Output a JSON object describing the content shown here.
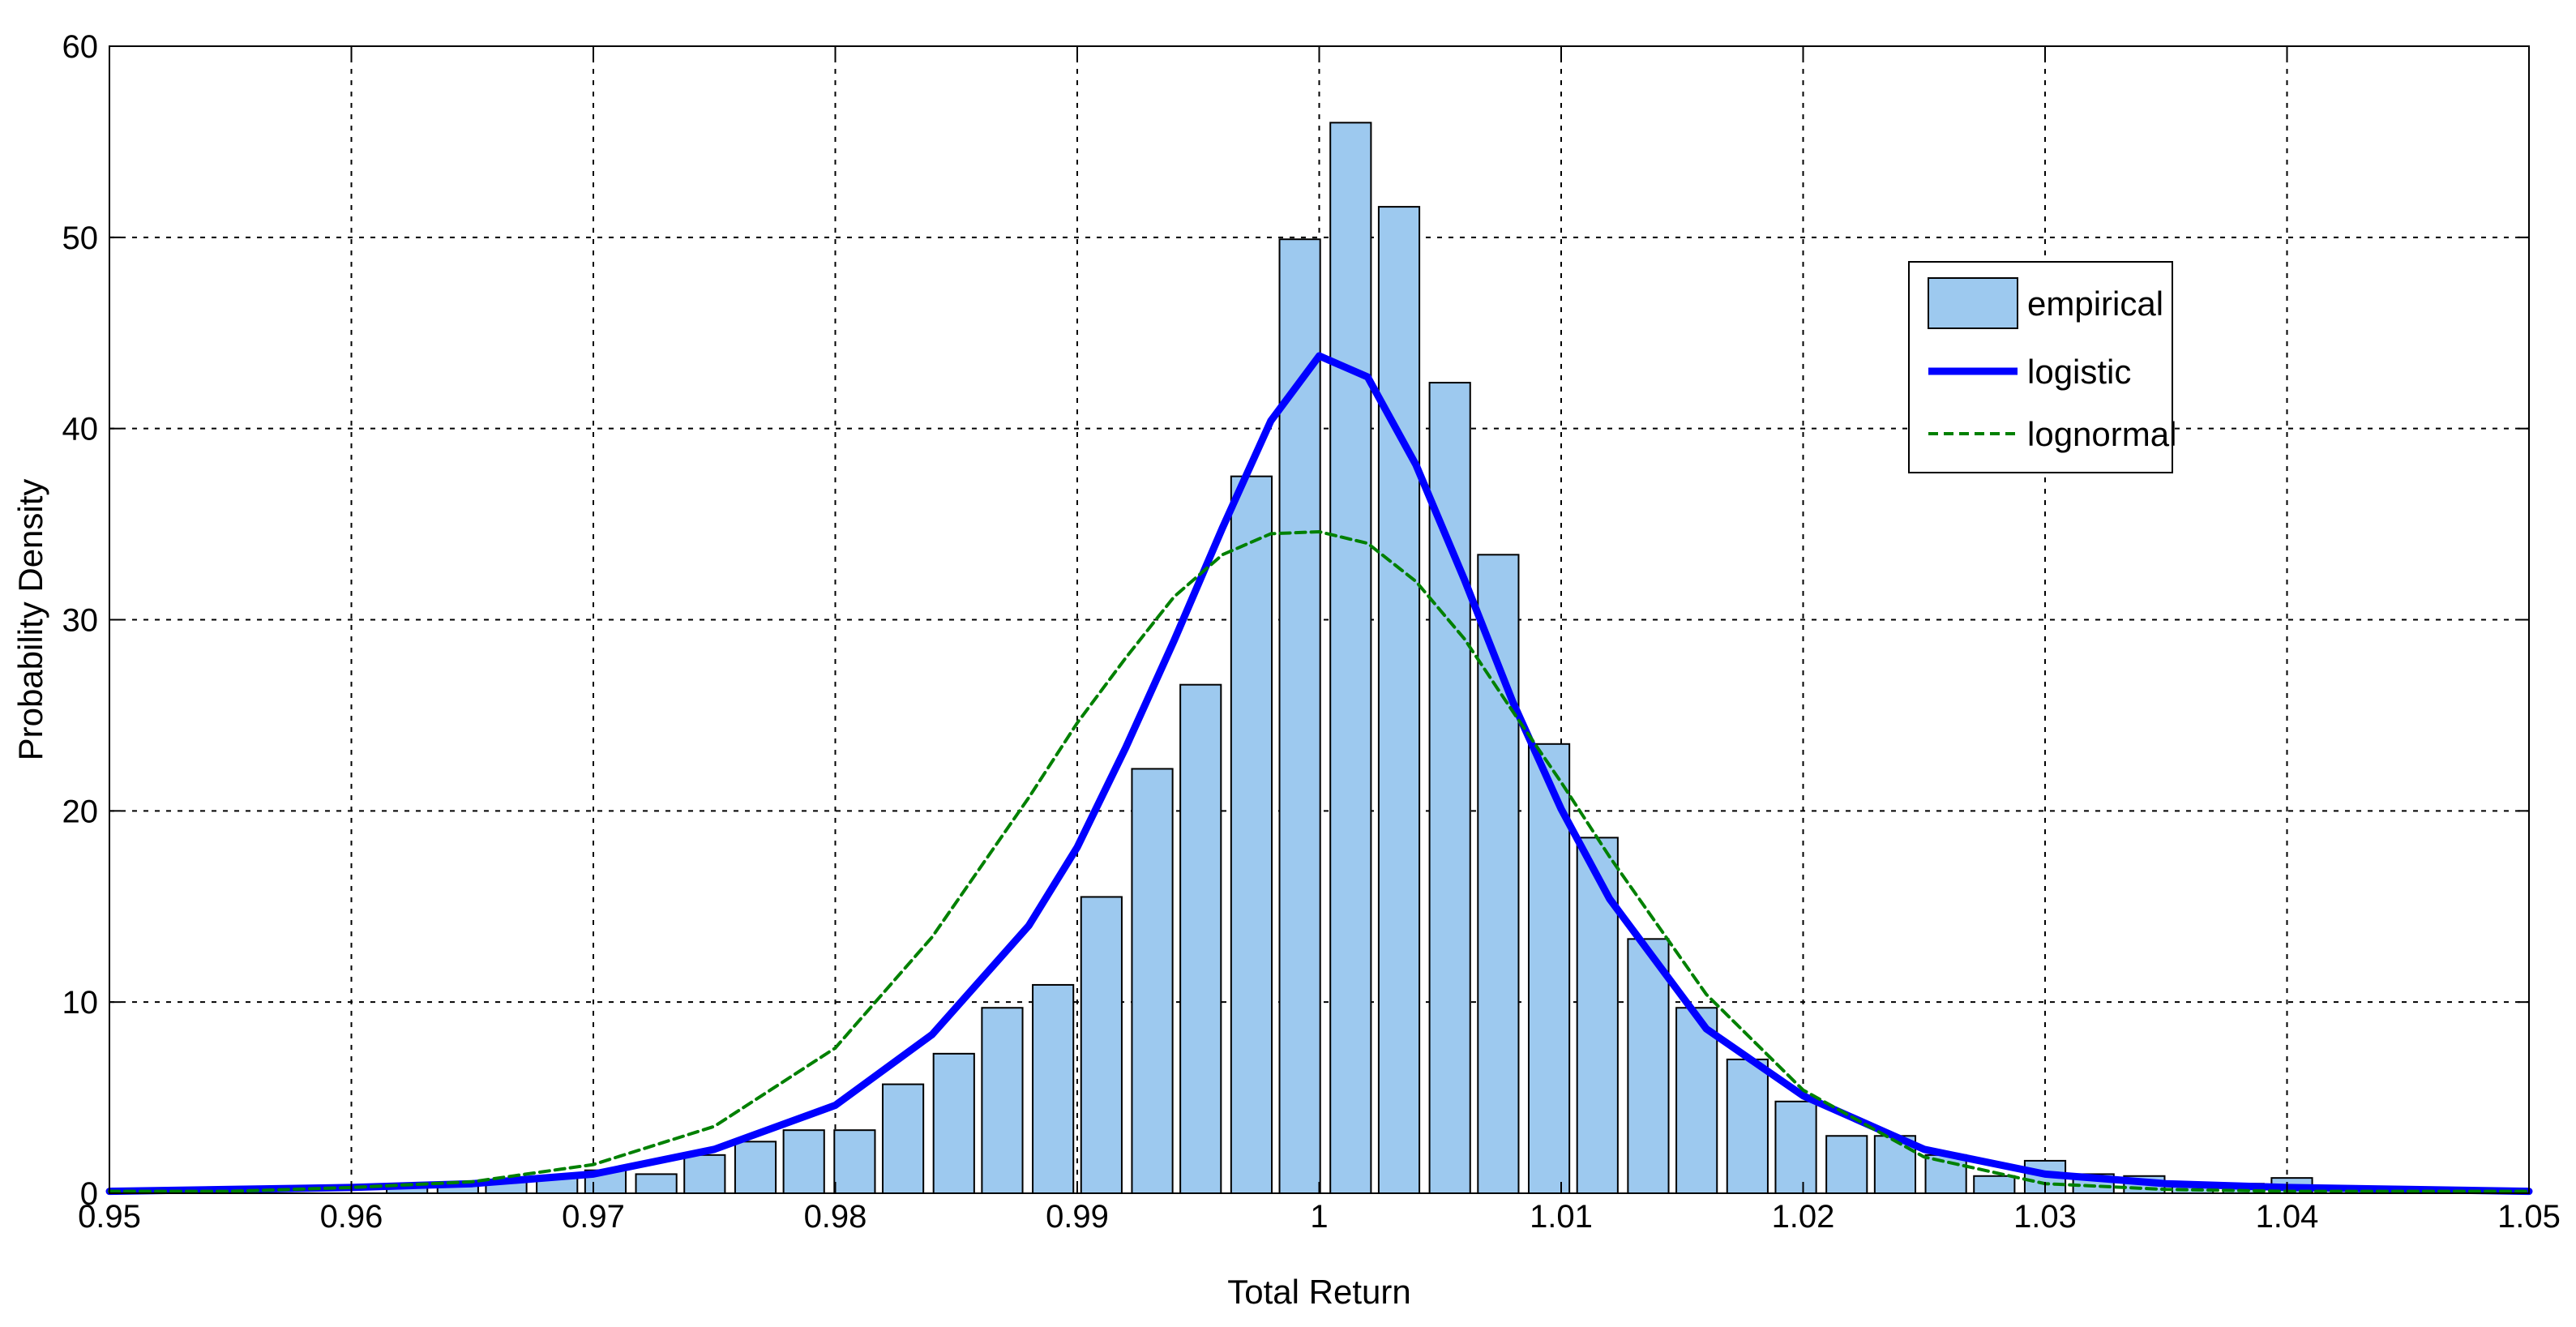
{
  "chart_data": {
    "type": "bar",
    "xlabel": "Total Return",
    "ylabel": "Probability Density",
    "xlim": [
      0.95,
      1.05
    ],
    "ylim": [
      0,
      60
    ],
    "xticks": [
      0.95,
      0.96,
      0.97,
      0.98,
      0.99,
      1.0,
      1.01,
      1.02,
      1.03,
      1.04,
      1.05
    ],
    "xtick_labels": [
      "0.95",
      "0.96",
      "0.97",
      "0.98",
      "0.99",
      "1",
      "1.01",
      "1.02",
      "1.03",
      "1.04",
      "1.05"
    ],
    "yticks": [
      0,
      10,
      20,
      30,
      40,
      50,
      60
    ],
    "ytick_labels": [
      "0",
      "10",
      "20",
      "30",
      "40",
      "50",
      "60"
    ],
    "grid": true,
    "legend_position": "top-right",
    "colors": {
      "bar_fill": "#9dc9ef",
      "bar_edge": "#000000",
      "logistic": "#0000ff",
      "lognormal": "#008000"
    },
    "histogram": {
      "name": "empirical",
      "bin_width": 0.00205,
      "bin_centers": [
        0.9623,
        0.9644,
        0.9664,
        0.9685,
        0.9705,
        0.9726,
        0.9746,
        0.9767,
        0.9787,
        0.9808,
        0.9828,
        0.9849,
        0.9869,
        0.989,
        0.991,
        0.9931,
        0.9951,
        0.9972,
        0.9992,
        1.0013,
        1.0033,
        1.0054,
        1.0074,
        1.0095,
        1.0115,
        1.0136,
        1.0156,
        1.0177,
        1.0197,
        1.0218,
        1.0238,
        1.0259,
        1.0279,
        1.03,
        1.032,
        1.0341,
        1.0361,
        1.0382,
        1.0402
      ],
      "values": [
        0.5,
        0.5,
        0.7,
        0.9,
        1.2,
        1.0,
        2.0,
        2.7,
        3.3,
        3.3,
        5.7,
        7.3,
        9.7,
        10.9,
        15.5,
        22.2,
        26.6,
        37.5,
        49.9,
        56.0,
        51.6,
        42.4,
        33.4,
        23.5,
        18.6,
        13.3,
        9.7,
        7.0,
        4.8,
        3.0,
        3.0,
        2.0,
        0.9,
        1.7,
        1.0,
        0.9,
        0.5,
        0.5,
        0.8
      ]
    },
    "series": [
      {
        "name": "logistic",
        "type": "line",
        "x": [
          0.95,
          0.955,
          0.96,
          0.965,
          0.97,
          0.975,
          0.98,
          0.984,
          0.988,
          0.99,
          0.992,
          0.994,
          0.996,
          0.998,
          1.0,
          1.002,
          1.004,
          1.006,
          1.008,
          1.01,
          1.012,
          1.016,
          1.02,
          1.025,
          1.03,
          1.035,
          1.04,
          1.045,
          1.05
        ],
        "y": [
          0.1,
          0.2,
          0.3,
          0.5,
          1.0,
          2.3,
          4.6,
          8.3,
          14.0,
          18.1,
          23.3,
          28.9,
          34.8,
          40.4,
          43.8,
          42.7,
          38.1,
          32.1,
          25.7,
          20.1,
          15.4,
          8.6,
          5.1,
          2.3,
          1.0,
          0.5,
          0.3,
          0.2,
          0.1
        ]
      },
      {
        "name": "lognormal",
        "type": "line",
        "x": [
          0.95,
          0.955,
          0.96,
          0.965,
          0.97,
          0.975,
          0.98,
          0.984,
          0.988,
          0.99,
          0.992,
          0.994,
          0.996,
          0.998,
          1.0,
          1.002,
          1.004,
          1.006,
          1.008,
          1.01,
          1.012,
          1.016,
          1.02,
          1.025,
          1.03,
          1.035,
          1.04,
          1.045,
          1.05
        ],
        "y": [
          0.1,
          0.1,
          0.3,
          0.6,
          1.5,
          3.5,
          7.6,
          13.4,
          20.7,
          24.6,
          28.0,
          31.2,
          33.4,
          34.5,
          34.6,
          34.0,
          32.0,
          29.0,
          25.2,
          21.5,
          17.6,
          10.4,
          5.4,
          1.9,
          0.5,
          0.2,
          0.1,
          0.1,
          0.1
        ]
      }
    ]
  }
}
